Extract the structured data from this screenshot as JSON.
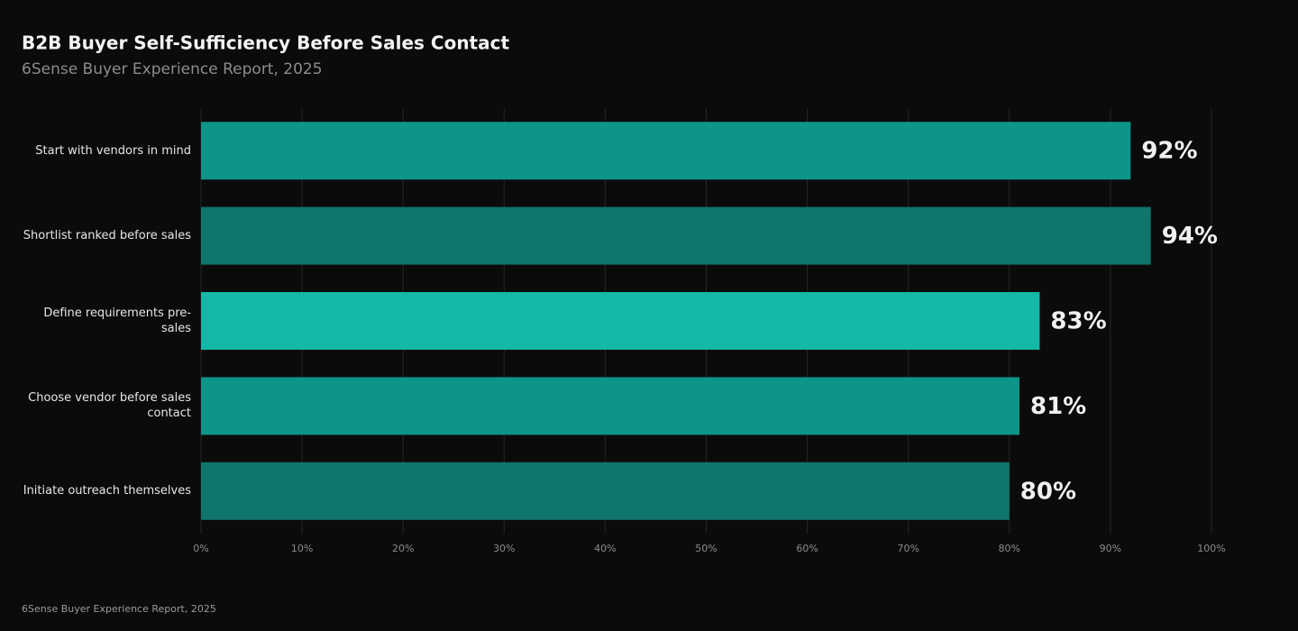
{
  "chart_data": {
    "type": "barh",
    "title": "B2B Buyer Self-Sufficiency Before Sales Contact",
    "subtitle": "6Sense Buyer Experience Report, 2025",
    "source": "6Sense Buyer Experience Report, 2025",
    "categories": [
      "Start with vendors in mind",
      "Shortlist ranked before sales",
      "Define requirements pre-sales",
      "Choose vendor before sales contact",
      "Initiate outreach themselves"
    ],
    "values": [
      92,
      94,
      83,
      81,
      80
    ],
    "value_labels": [
      "92%",
      "94%",
      "83%",
      "81%",
      "80%"
    ],
    "colors": [
      "#0e9488",
      "#10756c",
      "#14b8a6",
      "#0e9488",
      "#10756c"
    ],
    "xlim": [
      0,
      100
    ],
    "xticks": [
      {
        "value": 0,
        "label": "0%"
      },
      {
        "value": 10,
        "label": "10%"
      },
      {
        "value": 20,
        "label": "20%"
      },
      {
        "value": 30,
        "label": "30%"
      },
      {
        "value": 40,
        "label": "40%"
      },
      {
        "value": 50,
        "label": "50%"
      },
      {
        "value": 60,
        "label": "60%"
      },
      {
        "value": 70,
        "label": "70%"
      },
      {
        "value": 80,
        "label": "80%"
      },
      {
        "value": 90,
        "label": "90%"
      },
      {
        "value": 100,
        "label": "100%"
      }
    ],
    "grid": true
  }
}
